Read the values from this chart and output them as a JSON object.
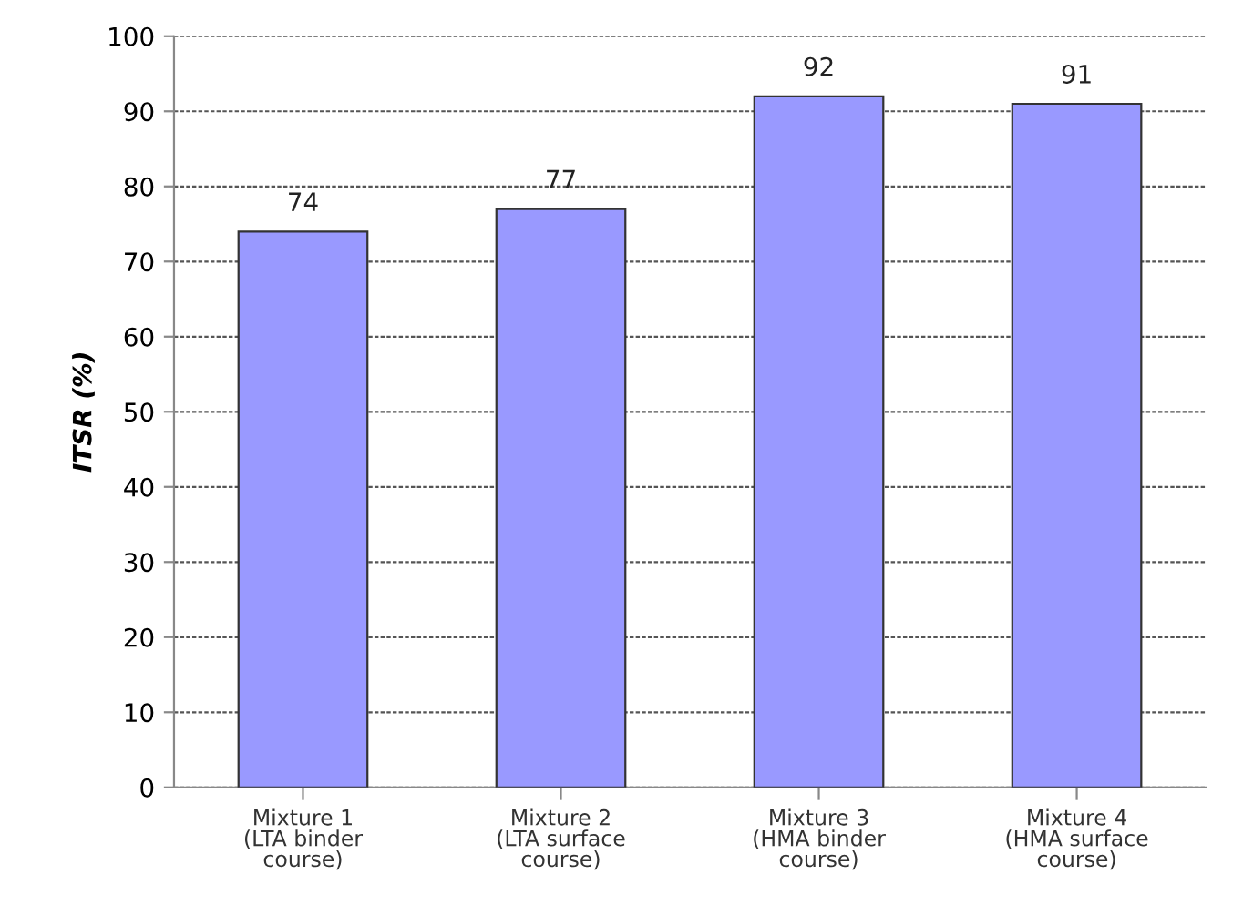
{
  "chart_data": {
    "type": "bar",
    "ylabel": "ITSR (%)",
    "categories": [
      "Mixture 1\n(LTA binder\ncourse)",
      "Mixture 2\n(LTA surface\ncourse)",
      "Mixture 3\n(HMA binder\ncourse)",
      "Mixture 4\n(HMA surface\ncourse)"
    ],
    "values": [
      74,
      77,
      92,
      91
    ],
    "color": "#9999ff",
    "ylim": [
      0,
      100
    ],
    "yticks": [
      0,
      10,
      20,
      30,
      40,
      50,
      60,
      70,
      80,
      90,
      100
    ],
    "grid": "y",
    "data_labels": true
  }
}
